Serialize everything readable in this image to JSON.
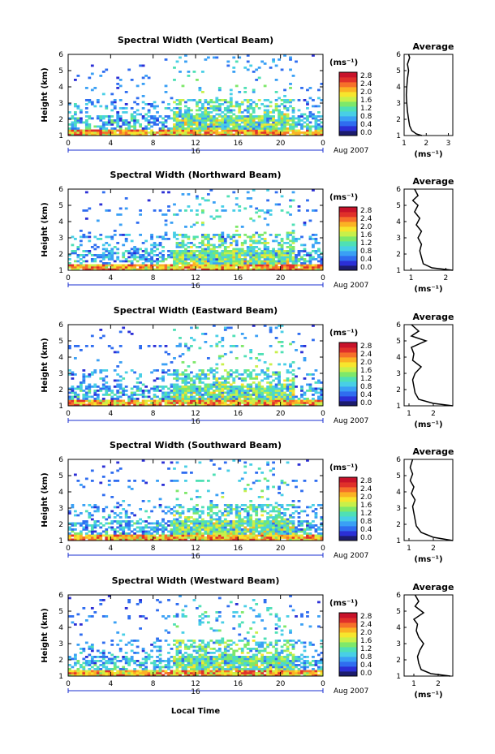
{
  "figure": {
    "xlabel": "Local Time",
    "date_label": "Aug 2007",
    "day_label": "16",
    "colorbar_unit": "(ms⁻¹)",
    "avg_title": "Average",
    "avg_unit": "(ms⁻¹)"
  },
  "colors": {
    "colormap": [
      "#1c1c6e",
      "#2b2fd6",
      "#2f6df0",
      "#3aa0f5",
      "#48cfe6",
      "#4fe0b5",
      "#7ee86a",
      "#c8f04a",
      "#f7e52d",
      "#fbb224",
      "#f6702a",
      "#e0302a",
      "#c8122a"
    ]
  },
  "chart_data": [
    {
      "type": "heatmap",
      "title": "Spectral Width (Vertical Beam)",
      "ylabel": "Height (km)",
      "ylim": [
        1,
        6
      ],
      "yticks": [
        "1",
        "2",
        "3",
        "4",
        "5",
        "6"
      ],
      "xlim": [
        0,
        24
      ],
      "xticks": [
        "0",
        "4",
        "8",
        "12",
        "16",
        "20",
        "0"
      ],
      "colorbar_ticks": [
        "2.8",
        "2.4",
        "2.0",
        "1.6",
        "1.2",
        "0.8",
        "0.4",
        "0.0"
      ],
      "colorbar_range": [
        0,
        2.8
      ],
      "average": {
        "xticks": [
          "1",
          "2",
          "3"
        ],
        "xlim": [
          1,
          3.2
        ],
        "profile": [
          [
            1.8,
            1.0
          ],
          [
            1.55,
            1.1
          ],
          [
            1.35,
            1.3
          ],
          [
            1.25,
            1.6
          ],
          [
            1.2,
            2.0
          ],
          [
            1.15,
            2.5
          ],
          [
            1.12,
            3.0
          ],
          [
            1.1,
            3.5
          ],
          [
            1.12,
            4.0
          ],
          [
            1.15,
            4.5
          ],
          [
            1.2,
            5.0
          ],
          [
            1.15,
            5.4
          ],
          [
            1.25,
            5.8
          ],
          [
            1.2,
            6.0
          ]
        ]
      }
    },
    {
      "type": "heatmap",
      "title": "Spectral Width (Northward Beam)",
      "ylabel": "Height (km)",
      "ylim": [
        1,
        6
      ],
      "yticks": [
        "1",
        "2",
        "3",
        "4",
        "5",
        "6"
      ],
      "xlim": [
        0,
        24
      ],
      "xticks": [
        "0",
        "4",
        "8",
        "12",
        "16",
        "20",
        "0"
      ],
      "colorbar_ticks": [
        "2.8",
        "2.4",
        "2.0",
        "1.6",
        "1.2",
        "0.8",
        "0.4",
        "0.0"
      ],
      "colorbar_range": [
        0,
        2.8
      ],
      "average": {
        "xticks": [
          "1",
          "2"
        ],
        "xlim": [
          0.8,
          2.2
        ],
        "profile": [
          [
            2.2,
            1.0
          ],
          [
            1.6,
            1.15
          ],
          [
            1.35,
            1.4
          ],
          [
            1.3,
            1.8
          ],
          [
            1.25,
            2.2
          ],
          [
            1.3,
            2.6
          ],
          [
            1.2,
            3.0
          ],
          [
            1.3,
            3.4
          ],
          [
            1.15,
            3.8
          ],
          [
            1.25,
            4.2
          ],
          [
            1.1,
            4.6
          ],
          [
            1.2,
            5.0
          ],
          [
            1.05,
            5.3
          ],
          [
            1.2,
            5.6
          ],
          [
            1.1,
            6.0
          ]
        ]
      }
    },
    {
      "type": "heatmap",
      "title": "Spectral Width (Eastward Beam)",
      "ylabel": "Height (km)",
      "ylim": [
        1,
        6
      ],
      "yticks": [
        "1",
        "2",
        "3",
        "4",
        "5",
        "6"
      ],
      "xlim": [
        0,
        24
      ],
      "xticks": [
        "0",
        "4",
        "8",
        "12",
        "16",
        "20",
        "0"
      ],
      "colorbar_ticks": [
        "2.8",
        "2.4",
        "2.0",
        "1.6",
        "1.2",
        "0.8",
        "0.4",
        "0.0"
      ],
      "colorbar_range": [
        0,
        2.8
      ],
      "average": {
        "xticks": [
          "1",
          "2"
        ],
        "xlim": [
          0.8,
          2.8
        ],
        "profile": [
          [
            2.8,
            1.0
          ],
          [
            2.0,
            1.15
          ],
          [
            1.4,
            1.4
          ],
          [
            1.25,
            1.8
          ],
          [
            1.2,
            2.2
          ],
          [
            1.15,
            2.6
          ],
          [
            1.25,
            3.0
          ],
          [
            1.5,
            3.4
          ],
          [
            1.15,
            3.8
          ],
          [
            1.2,
            4.2
          ],
          [
            1.1,
            4.6
          ],
          [
            1.7,
            5.0
          ],
          [
            1.1,
            5.3
          ],
          [
            1.4,
            5.6
          ],
          [
            1.1,
            6.0
          ]
        ]
      }
    },
    {
      "type": "heatmap",
      "title": "Spectral Width (Southward Beam)",
      "ylabel": "Height (km)",
      "ylim": [
        1,
        6
      ],
      "yticks": [
        "1",
        "2",
        "3",
        "4",
        "5",
        "6"
      ],
      "xlim": [
        0,
        24
      ],
      "xticks": [
        "0",
        "4",
        "8",
        "12",
        "16",
        "20",
        "0"
      ],
      "colorbar_ticks": [
        "2.8",
        "2.4",
        "2.0",
        "1.6",
        "1.2",
        "0.8",
        "0.4",
        "0.0"
      ],
      "colorbar_range": [
        0,
        2.8
      ],
      "average": {
        "xticks": [
          "1",
          "2"
        ],
        "xlim": [
          0.8,
          2.8
        ],
        "profile": [
          [
            2.8,
            1.0
          ],
          [
            2.0,
            1.2
          ],
          [
            1.5,
            1.5
          ],
          [
            1.3,
            1.9
          ],
          [
            1.25,
            2.3
          ],
          [
            1.2,
            2.7
          ],
          [
            1.15,
            3.1
          ],
          [
            1.25,
            3.5
          ],
          [
            1.1,
            3.9
          ],
          [
            1.2,
            4.3
          ],
          [
            1.05,
            4.7
          ],
          [
            1.15,
            5.1
          ],
          [
            1.05,
            5.5
          ],
          [
            1.15,
            6.0
          ]
        ]
      }
    },
    {
      "type": "heatmap",
      "title": "Spectral Width (Westward Beam)",
      "ylabel": "Height (km)",
      "ylim": [
        1,
        6
      ],
      "yticks": [
        "1",
        "2",
        "3",
        "4",
        "5",
        "6"
      ],
      "xlim": [
        0,
        24
      ],
      "xticks": [
        "0",
        "4",
        "8",
        "12",
        "16",
        "20",
        "0"
      ],
      "colorbar_ticks": [
        "2.8",
        "2.4",
        "2.0",
        "1.6",
        "1.2",
        "0.8",
        "0.4",
        "0.0"
      ],
      "colorbar_range": [
        0,
        2.8
      ],
      "average": {
        "xticks": [
          "1",
          "2"
        ],
        "xlim": [
          0.6,
          2.6
        ],
        "profile": [
          [
            2.5,
            1.0
          ],
          [
            1.7,
            1.15
          ],
          [
            1.3,
            1.4
          ],
          [
            1.2,
            1.8
          ],
          [
            1.15,
            2.2
          ],
          [
            1.25,
            2.6
          ],
          [
            1.4,
            3.0
          ],
          [
            1.2,
            3.4
          ],
          [
            1.1,
            3.8
          ],
          [
            1.15,
            4.2
          ],
          [
            1.0,
            4.5
          ],
          [
            1.4,
            4.9
          ],
          [
            1.05,
            5.3
          ],
          [
            1.2,
            5.6
          ],
          [
            1.05,
            6.0
          ]
        ]
      }
    }
  ]
}
